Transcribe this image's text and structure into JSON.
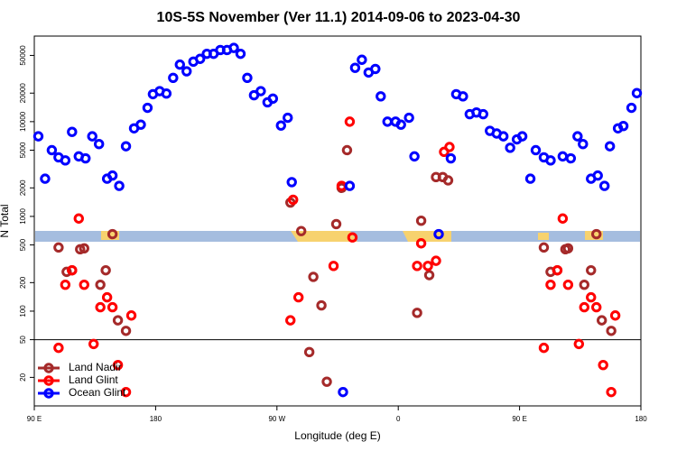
{
  "chart_data": {
    "type": "scatter",
    "title": "10S-5S November (Ver 11.1)   2014-09-06 to 2023-04-30",
    "xlabel": "Longitude (deg E)",
    "ylabel": "N Total",
    "xlim": [
      90,
      540
    ],
    "ylim": [
      10,
      80000
    ],
    "log_y": true,
    "legend": "bottom-left",
    "reference_line": 50,
    "xticks": [
      {
        "value": 90,
        "label": "90 E"
      },
      180,
      {
        "value": 270,
        "label": "90 W"
      },
      {
        "value": 360,
        "label": "0"
      },
      {
        "value": 450,
        "label": "90 E"
      },
      {
        "value": 540,
        "label": "180"
      }
    ],
    "yticks": [
      20,
      50,
      100,
      200,
      500,
      1000,
      2000,
      5000,
      10000,
      20000,
      50000
    ],
    "series": [
      {
        "name": "Land Nadir",
        "color": "#a52a2a",
        "x": [
          108,
          114,
          118,
          124,
          127,
          139,
          143,
          148,
          152,
          158,
          280,
          288,
          294,
          297,
          303,
          307,
          314,
          318,
          322,
          374,
          377,
          383,
          388,
          393,
          397,
          468,
          473,
          478,
          484,
          486,
          498,
          503,
          507,
          511,
          518
        ],
        "values": [
          470,
          260,
          270,
          450,
          460,
          190,
          270,
          650,
          80,
          62,
          1400,
          700,
          37,
          230,
          115,
          18,
          830,
          2000,
          5000,
          96,
          900,
          240,
          2600,
          2600,
          2400,
          470,
          260,
          270,
          450,
          460,
          190,
          270,
          650,
          80,
          62
        ]
      },
      {
        "name": "Land Glint",
        "color": "#ff0000",
        "x": [
          108,
          113,
          118,
          123,
          127,
          134,
          139,
          144,
          148,
          152,
          158,
          162,
          280,
          282,
          286,
          312,
          318,
          324,
          326,
          374,
          377,
          382,
          388,
          394,
          398,
          468,
          473,
          478,
          482,
          486,
          494,
          498,
          503,
          507,
          512,
          518,
          521
        ],
        "values": [
          41,
          190,
          270,
          950,
          190,
          45,
          110,
          140,
          110,
          27,
          14,
          90,
          80,
          1500,
          140,
          300,
          2100,
          10000,
          600,
          300,
          520,
          300,
          340,
          4800,
          5400,
          41,
          190,
          270,
          950,
          190,
          45,
          110,
          140,
          110,
          27,
          14,
          90
        ]
      },
      {
        "name": "Ocean Glint",
        "color": "#0000ff",
        "x": [
          93,
          98,
          103,
          108,
          113,
          118,
          123,
          128,
          133,
          138,
          144,
          148,
          153,
          158,
          164,
          169,
          174,
          178,
          183,
          188,
          193,
          198,
          203,
          208,
          213,
          218,
          223,
          228,
          233,
          238,
          243,
          248,
          253,
          258,
          263,
          267,
          273,
          278,
          281,
          324,
          319,
          328,
          333,
          338,
          343,
          347,
          352,
          358,
          362,
          368,
          372,
          390,
          399,
          403,
          408,
          413,
          418,
          423,
          428,
          433,
          438,
          443,
          448,
          452,
          458,
          462,
          468,
          473,
          482,
          488,
          493,
          497,
          503,
          508,
          513,
          517,
          523,
          527,
          533,
          537
        ],
        "values": [
          7000,
          2500,
          5000,
          4200,
          3900,
          7800,
          4300,
          4100,
          7000,
          5800,
          2500,
          2700,
          2100,
          5500,
          8500,
          9300,
          14000,
          19500,
          21000,
          19800,
          29000,
          40000,
          34000,
          43000,
          46000,
          52000,
          52000,
          57000,
          57000,
          60000,
          52000,
          29000,
          19000,
          21000,
          16000,
          17500,
          9100,
          11000,
          2300,
          2100,
          14,
          37000,
          45000,
          33000,
          36000,
          18500,
          10000,
          10000,
          9300,
          11000,
          4300,
          650,
          4100,
          19500,
          18500,
          12000,
          12500,
          12000,
          8000,
          7500,
          7000,
          5300,
          6500,
          7000,
          2500,
          5000,
          4200,
          3900,
          4300,
          4100,
          7000,
          5800,
          2500,
          2700,
          2100,
          5500,
          8500,
          9000,
          14000,
          20000
        ]
      }
    ]
  }
}
